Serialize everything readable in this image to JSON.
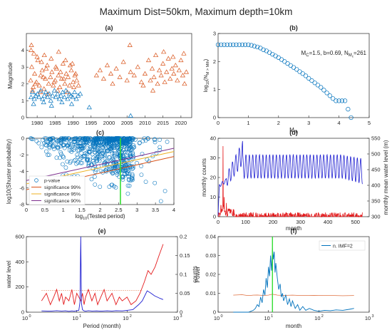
{
  "figure_title": "Maximum Dist=50km, Maximum depth=10km",
  "colors": {
    "blue": "#0072BD",
    "orange": "#D95319",
    "red": "#E41A1C",
    "darkblue": "#1F1FD1",
    "purple": "#7E2F8E",
    "green": "#33DD33",
    "yellow": "#EDB120"
  },
  "chart_data": [
    {
      "id": "a",
      "panel_label": "(a)",
      "type": "scatter",
      "xlabel": "",
      "ylabel": "Magnitude",
      "xlim": [
        1977,
        2023
      ],
      "ylim": [
        0,
        5
      ],
      "xticks": [
        1980,
        1985,
        1990,
        1995,
        2000,
        2005,
        2010,
        2015,
        2020
      ],
      "yticks": [
        0,
        1,
        2,
        3,
        4
      ],
      "series": [
        {
          "marker": "triangle",
          "color": "orange",
          "x": [
            1978.2,
            1978.5,
            1978.9,
            1979.3,
            1979.8,
            1980.2,
            1980.6,
            1981.0,
            1981.4,
            1981.9,
            1982.3,
            1982.8,
            1983.2,
            1983.7,
            1984.1,
            1984.5,
            1985.0,
            1985.4,
            1985.9,
            1986.3,
            1986.8,
            1987.2,
            1987.7,
            1988.1,
            1988.6,
            1989.0,
            1989.5,
            1990.0,
            1990.5,
            1991.0,
            1991.5,
            1978.4,
            1979.1,
            1980.0,
            1981.2,
            1982.5,
            1983.9,
            1985.2,
            1986.5,
            1987.9,
            1989.2,
            1990.7,
            1978.7,
            1980.9,
            1983.0,
            1985.7,
            1988.4,
            1979.5,
            1981.7,
            1984.7,
            1987.4,
            1990.2,
            1978.3,
            1982.0,
            1986.0,
            1989.8,
            1996.5,
            1997.5,
            1998.5,
            1999.5,
            2000.5,
            2001.0,
            2002.0,
            2003.0,
            2004.0,
            2005.0,
            2006.0,
            2007.0,
            2008.0,
            2009.0,
            2010.0,
            2011.0,
            2011.5,
            2012.0,
            2012.5,
            2013.0,
            2013.5,
            2014.0,
            2014.5,
            2015.0,
            2015.5,
            2016.0,
            2016.5,
            2017.0,
            2017.5,
            2018.0,
            2018.5,
            2019.0,
            2019.5,
            2020.0,
            2020.5,
            2021.0,
            2021.5,
            2005.8,
            2015.2,
            2017.8,
            2020.8,
            2012.2,
            2009.5
          ],
          "y": [
            2.2,
            3.0,
            1.8,
            2.6,
            2.1,
            3.4,
            1.9,
            2.5,
            2.8,
            1.7,
            2.3,
            3.1,
            2.0,
            2.4,
            2.7,
            1.9,
            2.2,
            2.9,
            2.5,
            1.8,
            2.3,
            3.2,
            2.0,
            2.6,
            2.4,
            1.9,
            2.8,
            2.1,
            2.5,
            2.2,
            1.9,
            4.3,
            3.8,
            3.6,
            3.3,
            2.9,
            3.5,
            3.0,
            2.7,
            3.4,
            3.1,
            2.6,
            1.6,
            1.5,
            1.4,
            1.6,
            1.5,
            2.0,
            2.4,
            2.1,
            2.3,
            1.8,
            4.0,
            3.7,
            3.9,
            3.2,
            2.5,
            2.8,
            2.3,
            3.1,
            2.6,
            2.0,
            2.9,
            2.4,
            3.3,
            2.2,
            2.7,
            2.5,
            3.0,
            2.1,
            2.6,
            3.4,
            2.2,
            2.9,
            2.4,
            3.7,
            2.0,
            2.8,
            2.5,
            3.2,
            2.1,
            2.7,
            3.5,
            2.3,
            2.9,
            2.6,
            3.1,
            2.2,
            2.8,
            3.4,
            2.5,
            2.0,
            2.7,
            4.3,
            3.9,
            3.6,
            3.8,
            1.6,
            1.9
          ]
        },
        {
          "marker": "triangle",
          "color": "blue",
          "x": [
            1978.3,
            1978.7,
            1979.2,
            1979.6,
            1980.1,
            1980.5,
            1981.0,
            1981.5,
            1982.0,
            1982.4,
            1982.9,
            1983.4,
            1983.8,
            1984.3,
            1984.8,
            1985.2,
            1985.7,
            1986.2,
            1986.6,
            1987.1,
            1987.6,
            1988.0,
            1988.5,
            1989.0,
            1989.4,
            1989.9,
            1990.4,
            1990.9,
            1991.4,
            1992.0,
            1979.0,
            1981.8,
            1984.0,
            1986.9,
            1989.6,
            1994.5,
            2006.0
          ],
          "y": [
            1.2,
            1.5,
            1.1,
            1.3,
            1.4,
            1.2,
            1.6,
            1.1,
            1.3,
            1.5,
            1.2,
            1.4,
            1.0,
            1.3,
            1.6,
            1.2,
            1.4,
            1.1,
            1.3,
            1.5,
            1.2,
            1.6,
            1.1,
            1.4,
            1.3,
            1.2,
            1.5,
            1.1,
            1.3,
            1.4,
            0.8,
            0.9,
            0.7,
            0.9,
            0.8,
            0.6,
            0.1
          ]
        }
      ]
    },
    {
      "id": "b",
      "panel_label": "(b)",
      "type": "scatter",
      "annotation": "M_C=1.5, b=0.69, N_Mc=261",
      "xlabel": "M_th",
      "ylabel": "log10(N_{M>Mth})",
      "xlim": [
        0,
        5
      ],
      "ylim": [
        0,
        3
      ],
      "xticks": [
        0,
        1,
        2,
        3,
        4,
        5
      ],
      "yticks": [
        0,
        1,
        2,
        3
      ],
      "series": [
        {
          "marker": "circle",
          "color": "blue",
          "x": [
            0.0,
            0.1,
            0.2,
            0.3,
            0.4,
            0.5,
            0.6,
            0.7,
            0.8,
            0.9,
            1.0,
            1.1,
            1.2,
            1.3,
            1.4,
            1.5,
            1.6,
            1.7,
            1.8,
            1.9,
            2.0,
            2.1,
            2.2,
            2.3,
            2.4,
            2.5,
            2.6,
            2.7,
            2.8,
            2.9,
            3.0,
            3.1,
            3.2,
            3.3,
            3.4,
            3.5,
            3.6,
            3.7,
            3.8,
            3.9,
            4.0,
            4.1,
            4.2,
            4.3,
            4.4
          ],
          "y": [
            2.6,
            2.6,
            2.6,
            2.6,
            2.6,
            2.6,
            2.6,
            2.6,
            2.6,
            2.6,
            2.6,
            2.58,
            2.55,
            2.52,
            2.48,
            2.42,
            2.38,
            2.32,
            2.26,
            2.2,
            2.14,
            2.07,
            2.0,
            1.93,
            1.86,
            1.79,
            1.72,
            1.64,
            1.57,
            1.49,
            1.4,
            1.32,
            1.24,
            1.16,
            1.08,
            0.98,
            0.88,
            0.78,
            0.68,
            0.6,
            0.6,
            0.6,
            0.6,
            0.3,
            0.0
          ]
        }
      ]
    },
    {
      "id": "c",
      "panel_label": "(c)",
      "type": "scatter",
      "xlabel": "log10(Tested period)",
      "ylabel": "log10(Shuster probability)",
      "xlim": [
        0,
        4
      ],
      "ylim": [
        -8,
        0
      ],
      "xticks": [
        0,
        0.5,
        1,
        1.5,
        2,
        2.5,
        3,
        3.5,
        4
      ],
      "yticks": [
        -8,
        -6,
        -4,
        -2,
        0
      ],
      "legend": [
        "p-value",
        "significance 99%",
        "significance 95%",
        "significance 90%"
      ],
      "vline_x": 2.55,
      "significance_lines": [
        {
          "name": "significance 99%",
          "color": "orange",
          "x": [
            0,
            4
          ],
          "y": [
            -6.2,
            -2.2
          ]
        },
        {
          "name": "significance 95%",
          "color": "yellow",
          "x": [
            0,
            4
          ],
          "y": [
            -5.5,
            -1.6
          ]
        },
        {
          "name": "significance 90%",
          "color": "purple",
          "x": [
            0,
            4
          ],
          "y": [
            -5.1,
            -1.2
          ]
        }
      ]
    },
    {
      "id": "d",
      "panel_label": "(d)",
      "type": "line",
      "xlabel": "month",
      "ylabel": "monthly counts",
      "ylabel_right": "monthly mean water level (m)",
      "xlim": [
        0,
        550
      ],
      "ylim": [
        0,
        40
      ],
      "ylim_right": [
        300,
        550
      ],
      "xticks": [
        0,
        100,
        200,
        300,
        400,
        500
      ],
      "yticks": [
        0,
        10,
        20,
        30,
        40
      ],
      "yticks_right": [
        300,
        350,
        400,
        450,
        500,
        550
      ]
    },
    {
      "id": "e",
      "panel_label": "(e)",
      "type": "line",
      "xlabel": "Period (month)",
      "ylabel": "water level",
      "ylabel_right": "counts",
      "xscale": "log",
      "xlim": [
        1,
        1000
      ],
      "ylim": [
        0,
        600
      ],
      "ylim_right": [
        0,
        0.2
      ],
      "xticks": [
        1,
        10,
        100,
        1000
      ],
      "yticks": [
        0,
        200,
        400,
        600
      ],
      "yticks_right": [
        0,
        0.05,
        0.1,
        0.15,
        0.2
      ],
      "series": [
        {
          "name": "",
          "color": "darkblue",
          "x": [
            2,
            3,
            4,
            5,
            6,
            7,
            8,
            9,
            10,
            11,
            11.6,
            12,
            12.4,
            13,
            14,
            15,
            17,
            20,
            25,
            30,
            40,
            50,
            60,
            80,
            100,
            130,
            170,
            200,
            250,
            300,
            350,
            450,
            520
          ],
          "y": [
            10,
            8,
            12,
            9,
            11,
            7,
            10,
            8,
            12,
            15,
            80,
            600,
            70,
            20,
            10,
            8,
            12,
            9,
            10,
            8,
            11,
            9,
            12,
            10,
            15,
            20,
            60,
            90,
            170,
            150,
            130,
            110,
            100
          ]
        },
        {
          "name": "",
          "color": "red",
          "x": [
            2,
            2.5,
            3,
            3.5,
            4,
            4.5,
            5,
            5.5,
            6,
            7,
            8,
            9,
            10,
            11,
            12,
            13,
            14,
            15,
            17,
            20,
            23,
            26,
            30,
            35,
            40,
            50,
            60,
            70,
            80,
            100,
            120,
            150,
            180,
            220,
            260,
            300,
            360,
            430,
            520
          ],
          "y": [
            0.03,
            0.05,
            0.02,
            0.04,
            0.06,
            0.03,
            0.05,
            0.02,
            0.04,
            0.03,
            0.06,
            0.02,
            0.05,
            0.04,
            0.03,
            0.05,
            0.02,
            0.04,
            0.06,
            0.03,
            0.05,
            0.02,
            0.04,
            0.06,
            0.03,
            0.05,
            0.02,
            0.04,
            0.03,
            0.04,
            0.02,
            0.03,
            0.05,
            0.08,
            0.11,
            0.1,
            0.12,
            0.15,
            0.18
          ]
        }
      ]
    },
    {
      "id": "f",
      "panel_label": "(f)",
      "type": "line",
      "xlabel": "month",
      "ylabel": "Power",
      "xscale": "log",
      "xlim": [
        1,
        1000
      ],
      "ylim": [
        0,
        0.04
      ],
      "xticks": [
        1,
        10,
        100,
        1000
      ],
      "yticks": [
        0,
        0.01,
        0.02,
        0.03,
        0.04
      ],
      "legend": [
        "n. IMF=2"
      ],
      "vline_x": 12,
      "series": [
        {
          "name": "n. IMF=2",
          "color": "blue",
          "x": [
            2,
            3,
            4,
            5,
            5.5,
            6,
            6.5,
            7,
            7.5,
            8,
            8.5,
            9,
            9.5,
            10,
            10.5,
            11,
            11.5,
            12,
            12.5,
            13,
            13.5,
            14,
            15,
            16,
            17,
            18,
            19,
            20,
            22,
            24,
            26,
            28,
            30,
            34,
            38,
            42,
            48,
            55,
            65,
            80,
            100,
            130,
            170,
            220,
            300,
            400,
            500
          ],
          "y": [
            0,
            0,
            0,
            0.001,
            0.002,
            0.004,
            0.003,
            0.008,
            0.005,
            0.012,
            0.009,
            0.018,
            0.013,
            0.024,
            0.019,
            0.03,
            0.022,
            0.034,
            0.028,
            0.032,
            0.021,
            0.026,
            0.018,
            0.012,
            0.015,
            0.008,
            0.01,
            0.006,
            0.009,
            0.004,
            0.007,
            0.003,
            0.006,
            0.002,
            0.004,
            0.001,
            0.003,
            0.001,
            0.002,
            0.001,
            0.0005,
            0.001,
            0.0008,
            0.0012,
            0.001,
            0.0015,
            0.002
          ]
        },
        {
          "name": "",
          "color": "orange",
          "x": [
            2,
            3,
            4,
            5,
            6,
            8,
            10,
            12,
            15,
            20,
            30,
            50,
            80,
            120,
            200,
            300,
            500
          ],
          "y": [
            0.009,
            0.0092,
            0.0088,
            0.009,
            0.0091,
            0.0089,
            0.009,
            0.0095,
            0.009,
            0.0089,
            0.009,
            0.0088,
            0.0089,
            0.0088,
            0.0088,
            0.0087,
            0.0088
          ]
        }
      ]
    }
  ]
}
